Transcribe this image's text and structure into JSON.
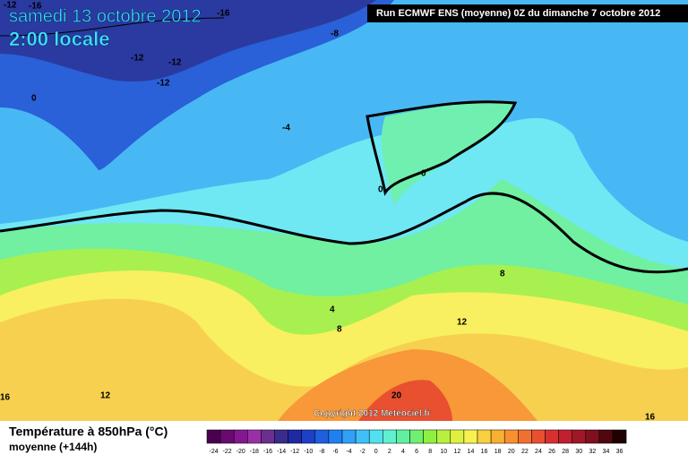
{
  "header": {
    "date": "samedi 13 octobre 2012",
    "time": "2:00 locale",
    "run": "Run ECMWF ENS (moyenne) 0Z du dimanche 7 octobre 2012"
  },
  "map": {
    "contour_labels": [
      -12,
      -16,
      -16,
      -8,
      -12,
      -12,
      -12,
      0,
      -4,
      0,
      0,
      8,
      4,
      8,
      12,
      12,
      16,
      20,
      16
    ],
    "copyright": "Copyright 2012 Meteociel.fr"
  },
  "legend": {
    "title": "Température à 850hPa (°C)",
    "subtitle": "moyenne  (+144h)",
    "labels": [
      -24,
      -22,
      -20,
      -18,
      -16,
      -14,
      -12,
      -10,
      -8,
      -6,
      -4,
      -2,
      0,
      2,
      4,
      6,
      8,
      10,
      12,
      14,
      16,
      18,
      20,
      22,
      24,
      26,
      28,
      30,
      32,
      34,
      36
    ],
    "colors": [
      "#4a0050",
      "#6a0a70",
      "#841890",
      "#9a30a8",
      "#6a3090",
      "#3a2c8a",
      "#1e2aa0",
      "#1e40c8",
      "#1e60e0",
      "#2080f0",
      "#30a0f8",
      "#40c0f8",
      "#50e0f0",
      "#60f0d0",
      "#60f0a0",
      "#70f070",
      "#90f040",
      "#b8f040",
      "#e0f040",
      "#f8f050",
      "#f8d040",
      "#f8b030",
      "#f89030",
      "#f07030",
      "#e85030",
      "#d83030",
      "#c02030",
      "#a01828",
      "#801020",
      "#500810",
      "#200000"
    ]
  }
}
